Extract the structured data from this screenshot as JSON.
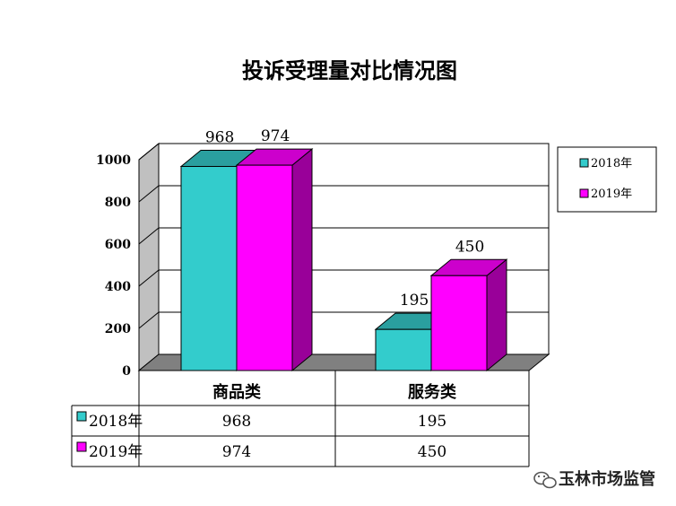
{
  "chart_data": {
    "type": "bar",
    "title": "投诉受理量对比情况图",
    "categories": [
      "商品类",
      "服务类"
    ],
    "series": [
      {
        "name": "2018年",
        "values": [
          968,
          195
        ]
      },
      {
        "name": "2019年",
        "values": [
          974,
          450
        ]
      }
    ],
    "data_labels": [
      [
        "968",
        "195"
      ],
      [
        "974",
        "450"
      ]
    ],
    "yticks": [
      "0",
      "200",
      "400",
      "600",
      "800",
      "1000"
    ],
    "ylim": [
      0,
      1000
    ],
    "grid": true,
    "legend": "right",
    "style": "3d-clustered-column-with-data-table"
  },
  "colors": {
    "series": [
      "#33CCCC",
      "#FF00FF"
    ],
    "series_top": [
      "#2A9F9F",
      "#CC00CC"
    ],
    "series_side": [
      "#1F7A7A",
      "#990099"
    ],
    "floor": "#808080"
  },
  "watermark": {
    "text": "玉林市场监管",
    "icon": "wechat-icon"
  }
}
